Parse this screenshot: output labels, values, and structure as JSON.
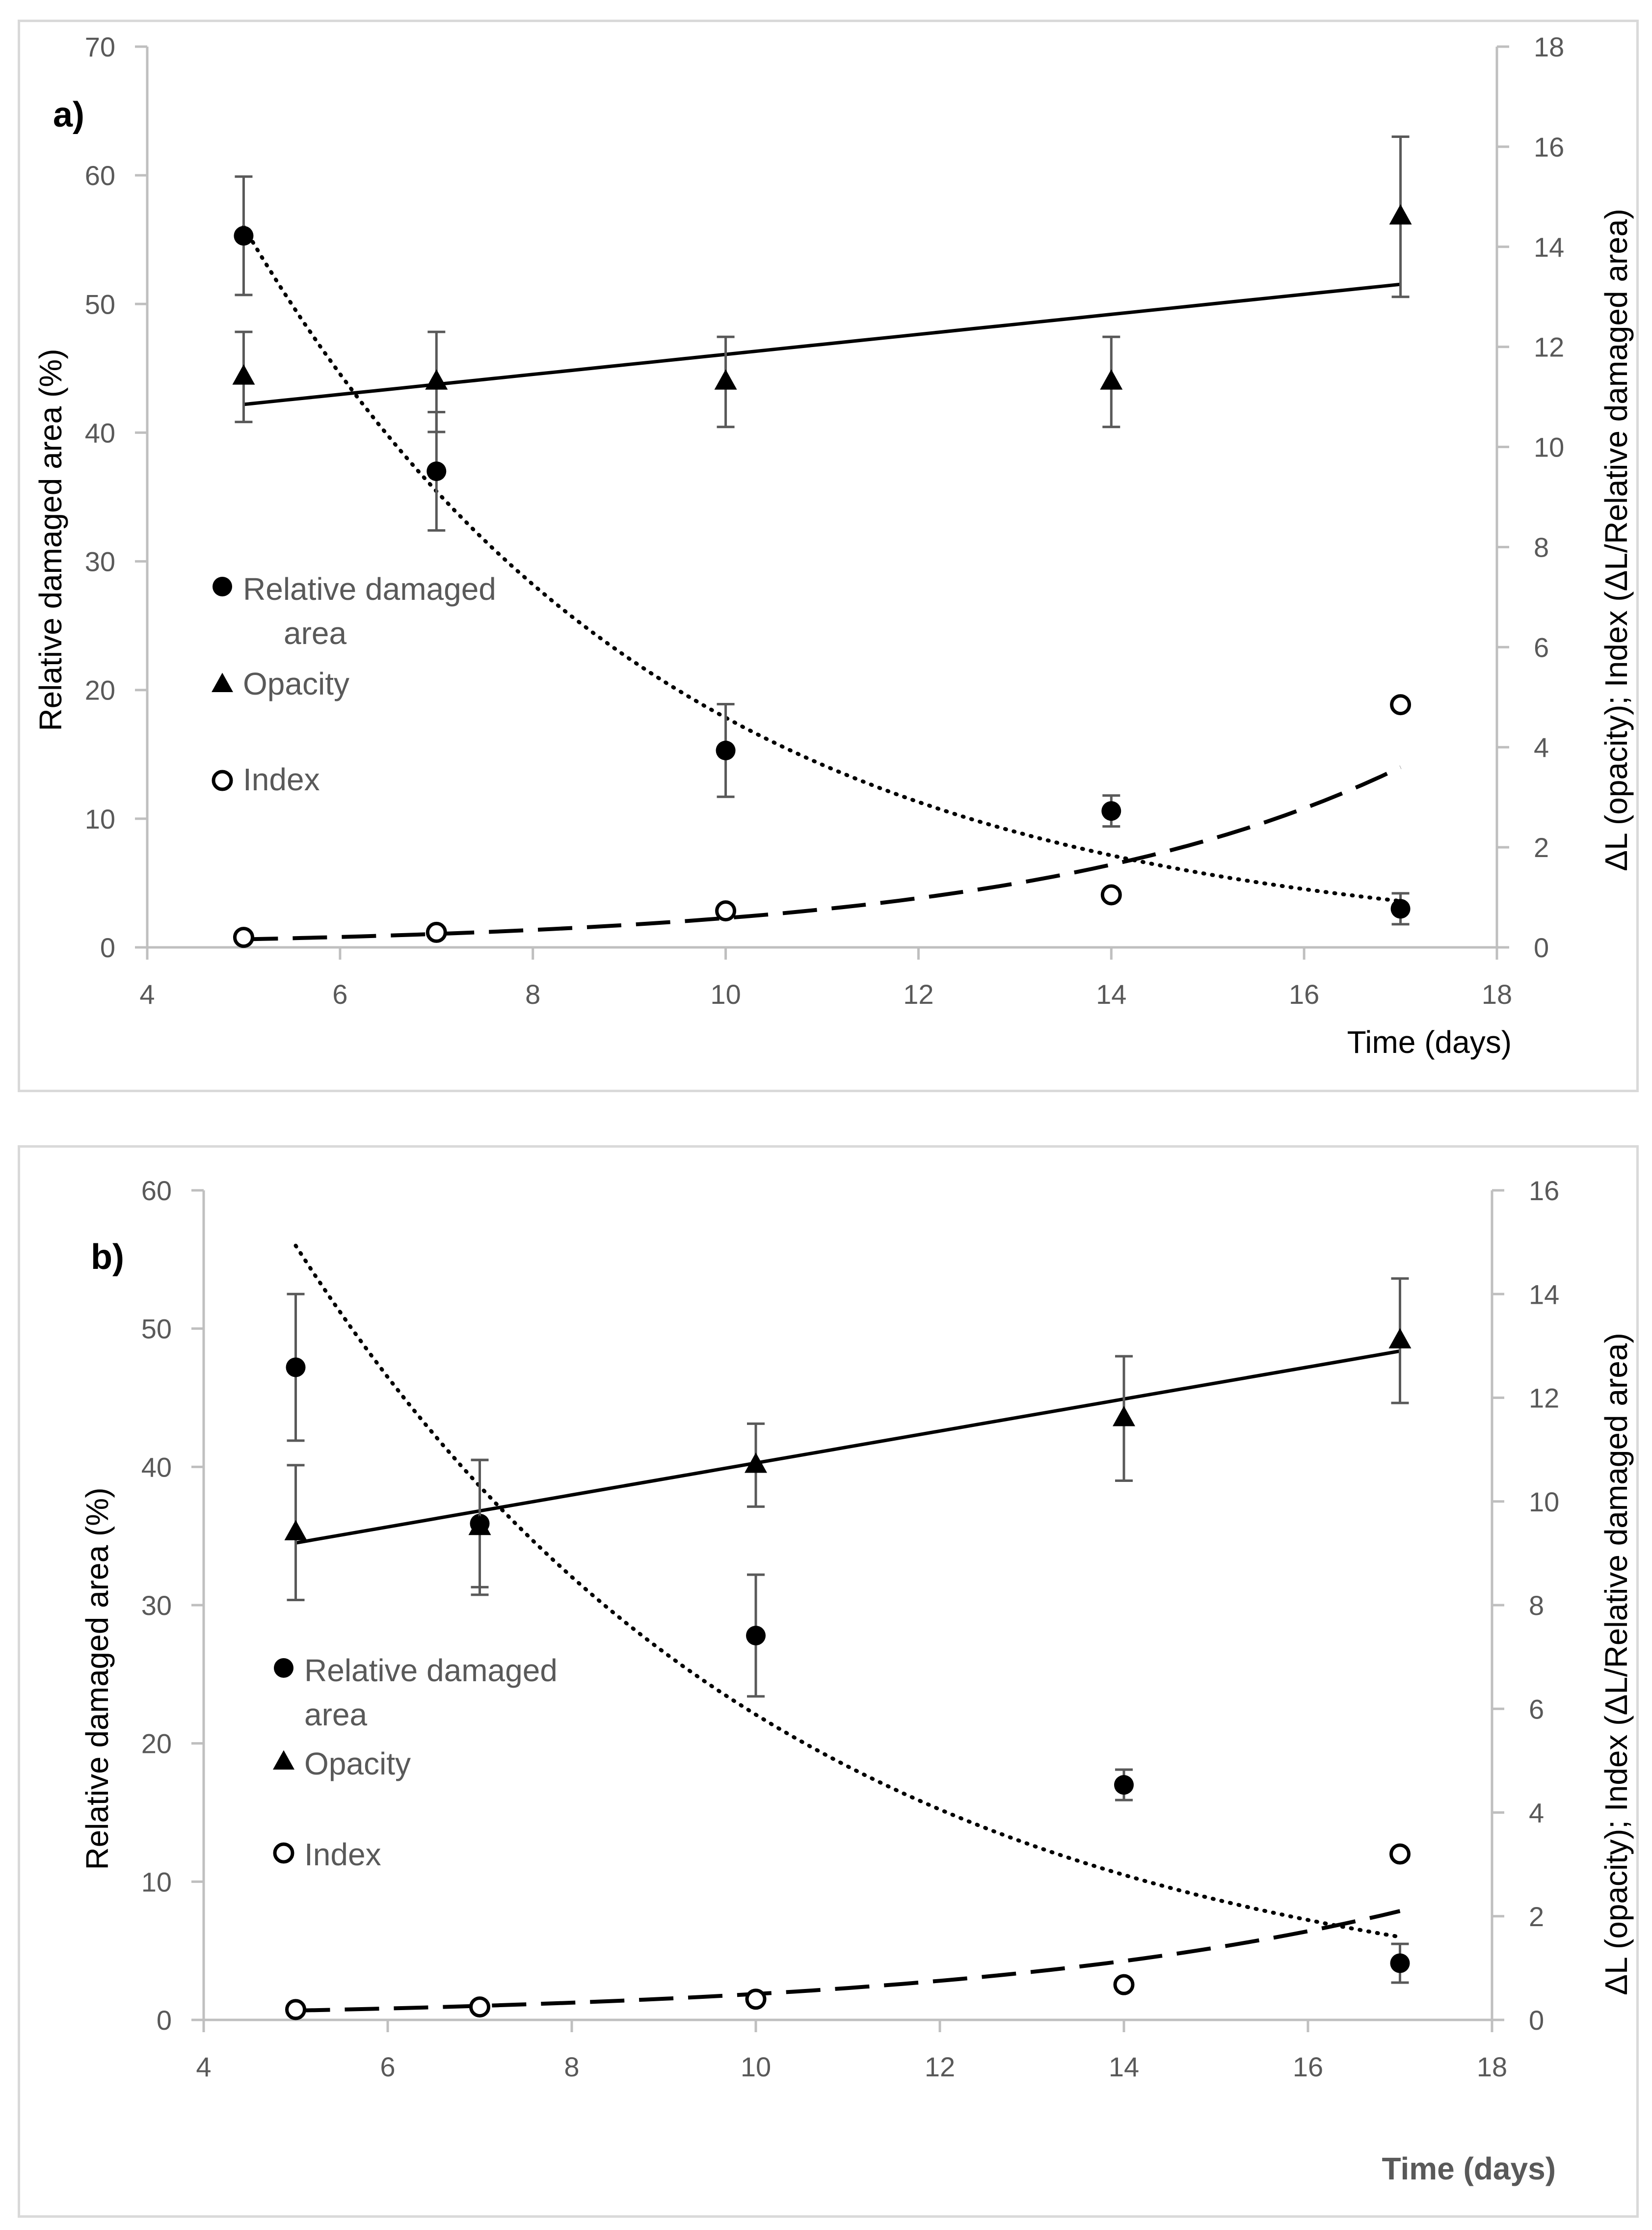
{
  "chart_data": [
    {
      "panel_label": "a)",
      "type": "scatter",
      "xlabel": "Time (days)",
      "ylabel": "Relative damaged area (%)",
      "y2label": "ΔL (opacity); Index (ΔL/Relative damaged area)",
      "xlim": [
        4,
        18
      ],
      "xticks": [
        4,
        6,
        8,
        10,
        12,
        14,
        16,
        18
      ],
      "ylim": [
        0,
        70
      ],
      "yticks": [
        0,
        10,
        20,
        30,
        40,
        50,
        60,
        70
      ],
      "y2lim": [
        0,
        18
      ],
      "y2ticks": [
        0,
        2,
        4,
        6,
        8,
        10,
        12,
        14,
        16,
        18
      ],
      "legend": [
        "Relative damaged area",
        "Opacity",
        "Index"
      ],
      "series": [
        {
          "name": "Relative damaged area",
          "axis": "left",
          "marker": "filled-circle",
          "x": [
            5,
            7,
            10,
            14,
            17
          ],
          "y": [
            55.3,
            37.0,
            15.3,
            10.6,
            3.0
          ],
          "err": [
            4.6,
            4.6,
            3.6,
            1.2,
            1.2
          ]
        },
        {
          "name": "Opacity",
          "axis": "right",
          "marker": "filled-triangle",
          "x": [
            5,
            7,
            10,
            14,
            17
          ],
          "y": [
            11.4,
            11.3,
            11.3,
            11.3,
            14.6
          ],
          "err": [
            0.9,
            1.0,
            0.9,
            0.9,
            1.6
          ]
        },
        {
          "name": "Index",
          "axis": "right",
          "marker": "open-circle",
          "x": [
            5,
            7,
            10,
            14,
            17
          ],
          "y": [
            0.2,
            0.3,
            0.73,
            1.05,
            4.85
          ]
        }
      ],
      "trendlines": [
        {
          "series": "Relative damaged area",
          "kind": "exponential",
          "style": "dotted",
          "axis": "left",
          "x0": 5,
          "y0": 56.0,
          "x1": 17,
          "y1": 3.6
        },
        {
          "series": "Opacity",
          "kind": "linear",
          "style": "solid",
          "axis": "right",
          "x0": 5,
          "y0": 10.85,
          "x1": 17,
          "y1": 13.25
        },
        {
          "series": "Index",
          "kind": "exponential",
          "style": "dashed",
          "axis": "right",
          "x0": 5,
          "y0": 0.16,
          "x1": 17,
          "y1": 3.6
        }
      ]
    },
    {
      "panel_label": "b)",
      "type": "scatter",
      "xlabel": "Time (days)",
      "ylabel": "Relative damaged area (%)",
      "y2label": "ΔL (opacity); Index (ΔL/Relative damaged area)",
      "xlim": [
        4,
        18
      ],
      "xticks": [
        4,
        6,
        8,
        10,
        12,
        14,
        16,
        18
      ],
      "ylim": [
        0,
        60
      ],
      "yticks": [
        0,
        10,
        20,
        30,
        40,
        50,
        60
      ],
      "y2lim": [
        0,
        16
      ],
      "y2ticks": [
        0,
        2,
        4,
        6,
        8,
        10,
        12,
        14,
        16
      ],
      "legend": [
        "Relative damaged area",
        "Opacity",
        "Index"
      ],
      "series": [
        {
          "name": "Relative damaged area",
          "axis": "left",
          "marker": "filled-circle",
          "x": [
            5,
            7,
            10,
            14,
            17
          ],
          "y": [
            47.2,
            35.9,
            27.8,
            17.0,
            4.1
          ],
          "err": [
            5.3,
            4.6,
            4.4,
            1.1,
            1.4
          ]
        },
        {
          "name": "Opacity",
          "axis": "right",
          "marker": "filled-triangle",
          "x": [
            5,
            7,
            10,
            14,
            17
          ],
          "y": [
            9.4,
            9.5,
            10.7,
            11.6,
            13.1
          ],
          "err": [
            1.3,
            1.3,
            0.8,
            1.2,
            1.2
          ]
        },
        {
          "name": "Index",
          "axis": "right",
          "marker": "open-circle",
          "x": [
            5,
            7,
            10,
            14,
            17
          ],
          "y": [
            0.2,
            0.25,
            0.4,
            0.68,
            3.2
          ]
        }
      ],
      "trendlines": [
        {
          "series": "Relative damaged area",
          "kind": "exponential",
          "style": "dotted",
          "axis": "left",
          "x0": 5,
          "y0": 56.0,
          "x1": 17,
          "y1": 6.0
        },
        {
          "series": "Opacity",
          "kind": "linear",
          "style": "solid",
          "axis": "right",
          "x0": 5,
          "y0": 9.2,
          "x1": 17,
          "y1": 12.9
        },
        {
          "series": "Index",
          "kind": "exponential",
          "style": "dashed",
          "axis": "right",
          "x0": 5,
          "y0": 0.18,
          "x1": 17,
          "y1": 2.1
        }
      ]
    }
  ]
}
